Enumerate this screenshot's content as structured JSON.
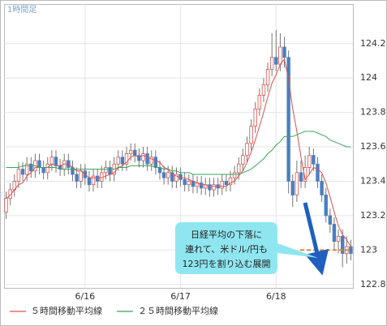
{
  "chart_data": {
    "type": "candlestick",
    "title": "1時間足",
    "categories": [
      null,
      null,
      null,
      null,
      null,
      null,
      null,
      null,
      null,
      null,
      null,
      null,
      null,
      null,
      null,
      null,
      null,
      null,
      null,
      "6/16",
      null,
      null,
      null,
      null,
      null,
      null,
      null,
      null,
      null,
      null,
      null,
      null,
      null,
      null,
      null,
      null,
      null,
      null,
      null,
      null,
      null,
      null,
      "6/17",
      null,
      null,
      null,
      null,
      null,
      null,
      null,
      null,
      null,
      null,
      null,
      null,
      null,
      null,
      null,
      null,
      null,
      null,
      null,
      null,
      null,
      null,
      "6/18",
      null,
      null,
      null,
      null,
      null,
      null,
      null,
      null,
      null,
      null,
      null,
      null,
      null,
      null,
      null,
      null,
      null,
      null
    ],
    "open": [
      123.22,
      123.3,
      123.35,
      123.4,
      123.47,
      123.44,
      123.5,
      123.46,
      123.52,
      123.48,
      123.45,
      123.5,
      123.54,
      123.49,
      123.47,
      123.52,
      123.48,
      123.44,
      123.4,
      123.46,
      123.42,
      123.38,
      123.43,
      123.4,
      123.45,
      123.48,
      123.44,
      123.5,
      123.54,
      123.5,
      123.56,
      123.58,
      123.55,
      123.52,
      123.56,
      123.5,
      123.54,
      123.48,
      123.45,
      123.42,
      123.45,
      123.4,
      123.44,
      123.41,
      123.38,
      123.4,
      123.37,
      123.39,
      123.36,
      123.38,
      123.35,
      123.38,
      123.36,
      123.4,
      123.38,
      123.42,
      123.45,
      123.5,
      123.55,
      123.62,
      123.72,
      123.82,
      123.9,
      123.96,
      124.05,
      124.12,
      124.08,
      124.18,
      124.12,
      123.4,
      123.32,
      123.45,
      123.4,
      123.48,
      123.55,
      123.5,
      123.4,
      123.32,
      123.2,
      123.15,
      123.05,
      123.08,
      122.98,
      123.02
    ],
    "high": [
      123.34,
      123.39,
      123.44,
      123.51,
      123.51,
      123.54,
      123.54,
      123.56,
      123.56,
      123.52,
      123.54,
      123.58,
      123.58,
      123.53,
      123.56,
      123.56,
      123.52,
      123.48,
      123.5,
      123.5,
      123.46,
      123.47,
      123.47,
      123.49,
      123.52,
      123.52,
      123.54,
      123.58,
      123.58,
      123.6,
      123.62,
      123.62,
      123.59,
      123.6,
      123.6,
      123.58,
      123.58,
      123.52,
      123.49,
      123.49,
      123.49,
      123.48,
      123.48,
      123.45,
      123.44,
      123.44,
      123.43,
      123.43,
      123.42,
      123.42,
      123.42,
      123.42,
      123.44,
      123.44,
      123.46,
      123.49,
      123.54,
      123.59,
      123.66,
      123.76,
      123.86,
      123.94,
      124.0,
      124.09,
      124.26,
      124.28,
      124.26,
      124.24,
      124.16,
      123.44,
      123.52,
      123.52,
      123.55,
      123.6,
      123.59,
      123.54,
      123.44,
      123.36,
      123.24,
      123.19,
      123.12,
      123.12,
      123.08,
      123.06
    ],
    "low": [
      123.18,
      123.26,
      123.31,
      123.36,
      123.4,
      123.4,
      123.42,
      123.42,
      123.44,
      123.41,
      123.41,
      123.46,
      123.45,
      123.43,
      123.43,
      123.44,
      123.4,
      123.36,
      123.36,
      123.38,
      123.34,
      123.34,
      123.36,
      123.36,
      123.41,
      123.4,
      123.4,
      123.46,
      123.46,
      123.46,
      123.52,
      123.51,
      123.48,
      123.48,
      123.46,
      123.46,
      123.44,
      123.41,
      123.38,
      123.38,
      123.36,
      123.36,
      123.37,
      123.34,
      123.34,
      123.33,
      123.33,
      123.32,
      123.32,
      123.31,
      123.31,
      123.32,
      123.32,
      123.34,
      123.34,
      123.38,
      123.41,
      123.46,
      123.51,
      123.58,
      123.68,
      123.78,
      123.86,
      123.92,
      124.01,
      124.04,
      124.04,
      124.06,
      123.33,
      123.25,
      123.28,
      123.36,
      123.36,
      123.44,
      123.46,
      123.36,
      123.28,
      123.16,
      123.1,
      123.0,
      122.98,
      122.9,
      122.92,
      122.94
    ],
    "close": [
      123.3,
      123.35,
      123.4,
      123.47,
      123.44,
      123.5,
      123.46,
      123.52,
      123.48,
      123.45,
      123.5,
      123.54,
      123.49,
      123.47,
      123.52,
      123.48,
      123.44,
      123.4,
      123.46,
      123.42,
      123.38,
      123.43,
      123.4,
      123.45,
      123.48,
      123.44,
      123.5,
      123.54,
      123.5,
      123.56,
      123.58,
      123.55,
      123.52,
      123.56,
      123.5,
      123.54,
      123.48,
      123.45,
      123.42,
      123.45,
      123.4,
      123.44,
      123.41,
      123.38,
      123.4,
      123.37,
      123.39,
      123.36,
      123.38,
      123.35,
      123.38,
      123.36,
      123.4,
      123.38,
      123.42,
      123.45,
      123.5,
      123.55,
      123.62,
      123.72,
      123.82,
      123.9,
      123.96,
      124.05,
      124.12,
      124.08,
      124.18,
      124.12,
      123.4,
      123.32,
      123.45,
      123.4,
      123.48,
      123.55,
      123.5,
      123.4,
      123.32,
      123.2,
      123.15,
      123.05,
      123.08,
      122.98,
      123.02,
      122.98
    ],
    "up_color": "#d9534f",
    "down_color": "#4a7fc1",
    "wick_color": "#777777",
    "series": [
      {
        "name": "５時間移動平均線",
        "color": "#d9534f",
        "values": [
          123.3,
          123.32,
          123.35,
          123.38,
          123.39,
          123.43,
          123.45,
          123.48,
          123.48,
          123.48,
          123.48,
          123.5,
          123.49,
          123.49,
          123.5,
          123.5,
          123.48,
          123.46,
          123.46,
          123.44,
          123.42,
          123.42,
          123.42,
          123.42,
          123.43,
          123.44,
          123.45,
          123.48,
          123.49,
          123.51,
          123.54,
          123.55,
          123.54,
          123.55,
          123.54,
          123.53,
          123.52,
          123.51,
          123.48,
          123.47,
          123.44,
          123.43,
          123.42,
          123.42,
          123.41,
          123.4,
          123.39,
          123.38,
          123.38,
          123.37,
          123.37,
          123.37,
          123.37,
          123.37,
          123.39,
          123.4,
          123.43,
          123.46,
          123.51,
          123.57,
          123.64,
          123.72,
          123.8,
          123.89,
          123.97,
          124.02,
          124.08,
          124.11,
          123.99,
          123.82,
          123.69,
          123.54,
          123.41,
          123.44,
          123.48,
          123.47,
          123.45,
          123.39,
          123.31,
          123.22,
          123.14,
          123.09,
          123.06,
          123.02
        ]
      },
      {
        "name": "２５時間移動平均線",
        "color": "#3aa35a",
        "values": [
          123.48,
          123.48,
          123.48,
          123.48,
          123.49,
          123.49,
          123.49,
          123.49,
          123.48,
          123.48,
          123.48,
          123.48,
          123.48,
          123.47,
          123.47,
          123.47,
          123.47,
          123.47,
          123.47,
          123.47,
          123.47,
          123.47,
          123.47,
          123.47,
          123.47,
          123.47,
          123.47,
          123.48,
          123.48,
          123.48,
          123.49,
          123.49,
          123.49,
          123.49,
          123.49,
          123.49,
          123.48,
          123.48,
          123.47,
          123.47,
          123.46,
          123.46,
          123.45,
          123.45,
          123.45,
          123.44,
          123.44,
          123.44,
          123.44,
          123.44,
          123.44,
          123.44,
          123.44,
          123.44,
          123.44,
          123.44,
          123.44,
          123.45,
          123.46,
          123.47,
          123.49,
          123.51,
          123.53,
          123.56,
          123.58,
          123.61,
          123.63,
          123.66,
          123.66,
          123.66,
          123.67,
          123.68,
          123.69,
          123.69,
          123.69,
          123.68,
          123.67,
          123.66,
          123.64,
          123.63,
          123.62,
          123.61,
          123.6,
          123.6
        ]
      }
    ],
    "reference_line": 123,
    "reference_color": "#e8822a",
    "annotation": [
      "日経平均の下落に",
      "連れて、米ドル/円も",
      "123円を割り込む展開"
    ],
    "ylim": [
      122.78,
      124.43
    ],
    "yticks": [
      122.8,
      123,
      123.2,
      123.4,
      123.6,
      123.8,
      124,
      124.2
    ],
    "grid": true
  }
}
